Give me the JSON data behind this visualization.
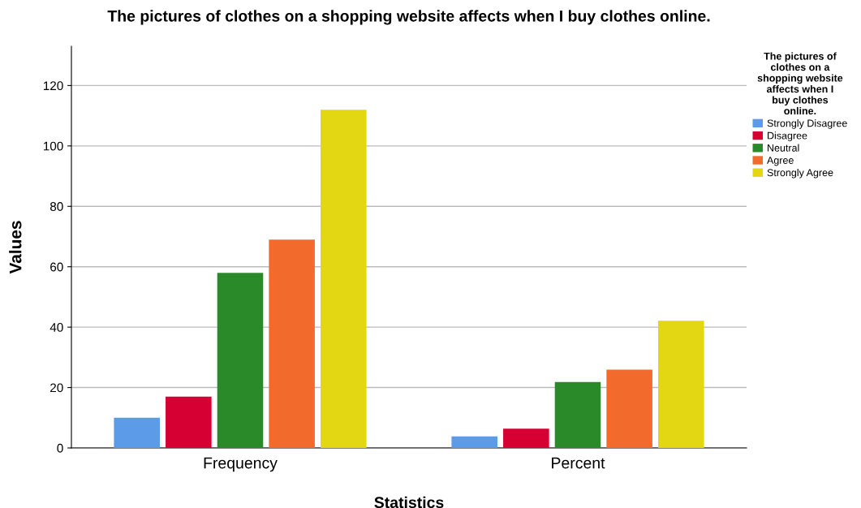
{
  "chart_data": {
    "type": "bar",
    "title": "The pictures of clothes on a shopping website affects when I buy clothes online.",
    "xlabel": "Statistics",
    "ylabel": "Values",
    "legend_title": "The pictures of clothes on a shopping website affects when I buy clothes online.",
    "categories": [
      "Frequency",
      "Percent"
    ],
    "series": [
      {
        "name": "Strongly Disagree",
        "color": "#5b9be8",
        "values": [
          10,
          3.8
        ]
      },
      {
        "name": "Disagree",
        "color": "#d60032",
        "values": [
          17,
          6.4
        ]
      },
      {
        "name": "Neutral",
        "color": "#2a8a2a",
        "values": [
          58,
          21.8
        ]
      },
      {
        "name": "Agree",
        "color": "#f26b2d",
        "values": [
          69,
          25.9
        ]
      },
      {
        "name": "Strongly Agree",
        "color": "#e2d712",
        "values": [
          112,
          42.1
        ]
      }
    ],
    "ylim": [
      0,
      133
    ],
    "yticks": [
      0,
      20,
      40,
      60,
      80,
      100,
      120
    ],
    "grid": "y",
    "legend": "right"
  }
}
